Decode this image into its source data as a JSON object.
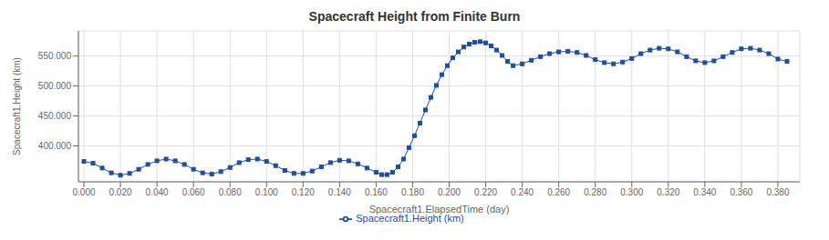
{
  "chart_data": {
    "type": "line",
    "title": "Spacecraft Height from Finite Burn",
    "xlabel": "Spacecraft1.ElapsedTime (day)",
    "ylabel": "Spacecraft1.Height (km)",
    "x": [
      0.0,
      0.005,
      0.01,
      0.015,
      0.02,
      0.025,
      0.03,
      0.035,
      0.04,
      0.045,
      0.05,
      0.055,
      0.06,
      0.065,
      0.07,
      0.075,
      0.08,
      0.085,
      0.09,
      0.095,
      0.1,
      0.105,
      0.11,
      0.115,
      0.12,
      0.125,
      0.13,
      0.135,
      0.14,
      0.145,
      0.15,
      0.155,
      0.16,
      0.163,
      0.166,
      0.169,
      0.172,
      0.175,
      0.178,
      0.181,
      0.184,
      0.187,
      0.19,
      0.193,
      0.196,
      0.199,
      0.202,
      0.205,
      0.208,
      0.211,
      0.214,
      0.217,
      0.22,
      0.223,
      0.226,
      0.229,
      0.232,
      0.235,
      0.24,
      0.245,
      0.25,
      0.255,
      0.26,
      0.265,
      0.27,
      0.275,
      0.28,
      0.285,
      0.29,
      0.295,
      0.3,
      0.305,
      0.31,
      0.315,
      0.32,
      0.325,
      0.33,
      0.335,
      0.34,
      0.345,
      0.35,
      0.355,
      0.36,
      0.365,
      0.37,
      0.375,
      0.38,
      0.385
    ],
    "series": [
      {
        "name": "Spacecraft1.Height (km)",
        "color": "#1F4E9C",
        "marker": "square",
        "values": [
          374000,
          371000,
          363000,
          355000,
          351000,
          354000,
          361000,
          369000,
          375000,
          378000,
          375000,
          369000,
          361000,
          355000,
          353000,
          357000,
          364000,
          372000,
          377000,
          378000,
          374000,
          367000,
          359000,
          354000,
          354000,
          358000,
          365000,
          372000,
          376000,
          375000,
          370000,
          363000,
          356000,
          352000,
          352000,
          356000,
          365000,
          378000,
          397000,
          417000,
          438000,
          460000,
          481000,
          501000,
          519000,
          534000,
          547000,
          557000,
          565000,
          570000,
          573000,
          574000,
          572000,
          567000,
          560000,
          551000,
          541000,
          534000,
          537000,
          543000,
          549000,
          554000,
          557000,
          558000,
          556000,
          551000,
          544000,
          539000,
          537000,
          540000,
          546000,
          554000,
          560000,
          563000,
          562000,
          557000,
          549000,
          542000,
          539000,
          542000,
          549000,
          556000,
          562000,
          563000,
          560000,
          554000,
          545000,
          541000
        ]
      }
    ],
    "xlim": [
      -0.003,
      0.392
    ],
    "ylim": [
      340000,
      592000
    ],
    "xticks": [
      {
        "value": 0.0,
        "label": "0.000"
      },
      {
        "value": 0.02,
        "label": "0.020"
      },
      {
        "value": 0.04,
        "label": "0.040"
      },
      {
        "value": 0.06,
        "label": "0.060"
      },
      {
        "value": 0.08,
        "label": "0.080"
      },
      {
        "value": 0.1,
        "label": "0.100"
      },
      {
        "value": 0.12,
        "label": "0.120"
      },
      {
        "value": 0.14,
        "label": "0.140"
      },
      {
        "value": 0.16,
        "label": "0.160"
      },
      {
        "value": 0.18,
        "label": "0.180"
      },
      {
        "value": 0.2,
        "label": "0.200"
      },
      {
        "value": 0.22,
        "label": "0.220"
      },
      {
        "value": 0.24,
        "label": "0.240"
      },
      {
        "value": 0.26,
        "label": "0.260"
      },
      {
        "value": 0.28,
        "label": "0.280"
      },
      {
        "value": 0.3,
        "label": "0.300"
      },
      {
        "value": 0.32,
        "label": "0.320"
      },
      {
        "value": 0.34,
        "label": "0.340"
      },
      {
        "value": 0.36,
        "label": "0.360"
      },
      {
        "value": 0.38,
        "label": "0.380"
      }
    ],
    "yticks": [
      {
        "value": 400000,
        "label": "400.000"
      },
      {
        "value": 450000,
        "label": "450.000"
      },
      {
        "value": 500000,
        "label": "500.000"
      },
      {
        "value": 550000,
        "label": "550.000"
      }
    ],
    "grid": true,
    "legend": "bottom"
  }
}
